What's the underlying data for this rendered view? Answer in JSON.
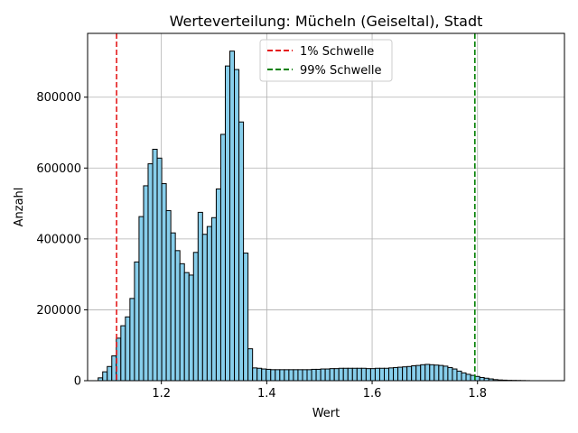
{
  "chart_data": {
    "type": "histogram",
    "title": "Werteverteilung: Mücheln (Geiseltal), Stadt",
    "xlabel": "Wert",
    "ylabel": "Anzahl",
    "xlim": [
      1.06,
      1.965
    ],
    "ylim": [
      0,
      980000
    ],
    "xticks": [
      1.2,
      1.4,
      1.6,
      1.8
    ],
    "xtick_labels": [
      "1.2",
      "1.4",
      "1.6",
      "1.8"
    ],
    "yticks": [
      0,
      200000,
      400000,
      600000,
      800000
    ],
    "ytick_labels": [
      "0",
      "200000",
      "400000",
      "600000",
      "800000"
    ],
    "grid": true,
    "bar_color": "#87ceeb",
    "bar_edge_color": "#000000",
    "bin_start": 1.08,
    "bin_width": 0.00862,
    "counts": [
      8000,
      25000,
      40000,
      70000,
      120000,
      155000,
      180000,
      232000,
      335000,
      463000,
      550000,
      612000,
      653000,
      628000,
      556000,
      480000,
      417000,
      367000,
      330000,
      305000,
      298000,
      362000,
      475000,
      413000,
      435000,
      460000,
      541000,
      695000,
      888000,
      930000,
      878000,
      730000,
      360000,
      90000,
      36000,
      35000,
      33000,
      32000,
      31000,
      31000,
      31000,
      31000,
      31000,
      31000,
      31000,
      31000,
      31000,
      32000,
      32000,
      33000,
      33000,
      34000,
      34000,
      35000,
      35000,
      35000,
      35000,
      35000,
      35000,
      34000,
      34000,
      35000,
      35000,
      35000,
      36000,
      37000,
      38000,
      39000,
      40000,
      42000,
      43000,
      45000,
      46000,
      45000,
      44000,
      43000,
      41000,
      37000,
      33000,
      27000,
      22000,
      18000,
      15000,
      12000,
      9000,
      7000,
      5000,
      3000,
      2000,
      1500,
      1000,
      800,
      600,
      400,
      200
    ],
    "vlines": [
      {
        "x": 1.115,
        "color": "#e41a1c",
        "label": "1% Schwelle"
      },
      {
        "x": 1.795,
        "color": "#008000",
        "label": "99% Schwelle"
      }
    ],
    "legend": {
      "position": "top-center",
      "entries": [
        "1% Schwelle",
        "99% Schwelle"
      ]
    }
  }
}
